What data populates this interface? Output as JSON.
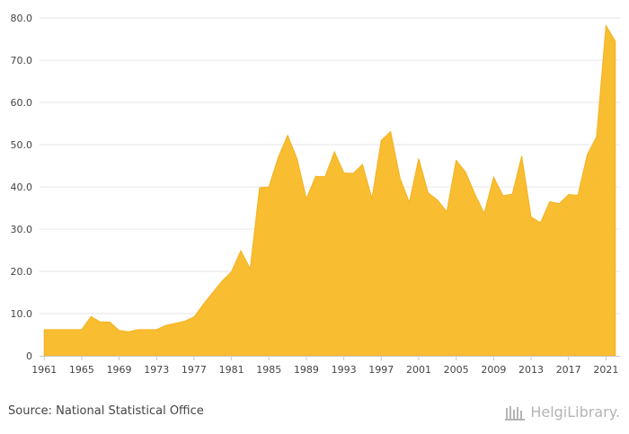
{
  "chart_data": {
    "type": "area",
    "series_color": "#f9bd31",
    "grid": true,
    "xlim": [
      1960.5,
      2022.5
    ],
    "ylim": [
      0,
      80
    ],
    "y_ticks": [
      0,
      10,
      20,
      30,
      40,
      50,
      60,
      70,
      80
    ],
    "y_tick_labels": [
      "0",
      "10.0",
      "20.0",
      "30.0",
      "40.0",
      "50.0",
      "60.0",
      "70.0",
      "80.0"
    ],
    "x_ticks": [
      1961,
      1965,
      1969,
      1973,
      1977,
      1981,
      1985,
      1989,
      1993,
      1997,
      2001,
      2005,
      2009,
      2013,
      2017,
      2021
    ],
    "x_tick_labels": [
      "1961",
      "1965",
      "1969",
      "1973",
      "1977",
      "1981",
      "1985",
      "1989",
      "1993",
      "1997",
      "2001",
      "2005",
      "2009",
      "2013",
      "2017",
      "2021"
    ],
    "x": [
      1961,
      1962,
      1963,
      1964,
      1965,
      1966,
      1967,
      1968,
      1969,
      1970,
      1971,
      1972,
      1973,
      1974,
      1975,
      1976,
      1977,
      1978,
      1979,
      1980,
      1981,
      1982,
      1983,
      1984,
      1985,
      1986,
      1987,
      1988,
      1989,
      1990,
      1991,
      1992,
      1993,
      1994,
      1995,
      1996,
      1997,
      1998,
      1999,
      2000,
      2001,
      2002,
      2003,
      2004,
      2005,
      2006,
      2007,
      2008,
      2009,
      2010,
      2011,
      2012,
      2013,
      2014,
      2015,
      2016,
      2017,
      2018,
      2019,
      2020,
      2021,
      2022
    ],
    "values": [
      6.2,
      6.2,
      6.2,
      6.2,
      6.2,
      9.3,
      8.0,
      8.0,
      6.0,
      5.7,
      6.2,
      6.2,
      6.2,
      7.2,
      7.7,
      8.2,
      9.2,
      12.2,
      15.0,
      17.7,
      19.9,
      24.9,
      20.6,
      39.8,
      40.0,
      47.0,
      52.2,
      46.7,
      37.2,
      42.5,
      42.4,
      48.3,
      43.3,
      43.2,
      45.3,
      37.2,
      51.0,
      53.1,
      42.1,
      36.3,
      46.7,
      38.6,
      36.9,
      34.1,
      46.3,
      43.5,
      38.3,
      33.7,
      42.3,
      37.9,
      38.3,
      47.3,
      32.9,
      31.5,
      36.5,
      36.0,
      38.2,
      38.0,
      47.6,
      51.9,
      78.2,
      74.5
    ]
  },
  "footer": {
    "source": "Source: National Statistical Office",
    "brand": "HelgiLibrary."
  }
}
